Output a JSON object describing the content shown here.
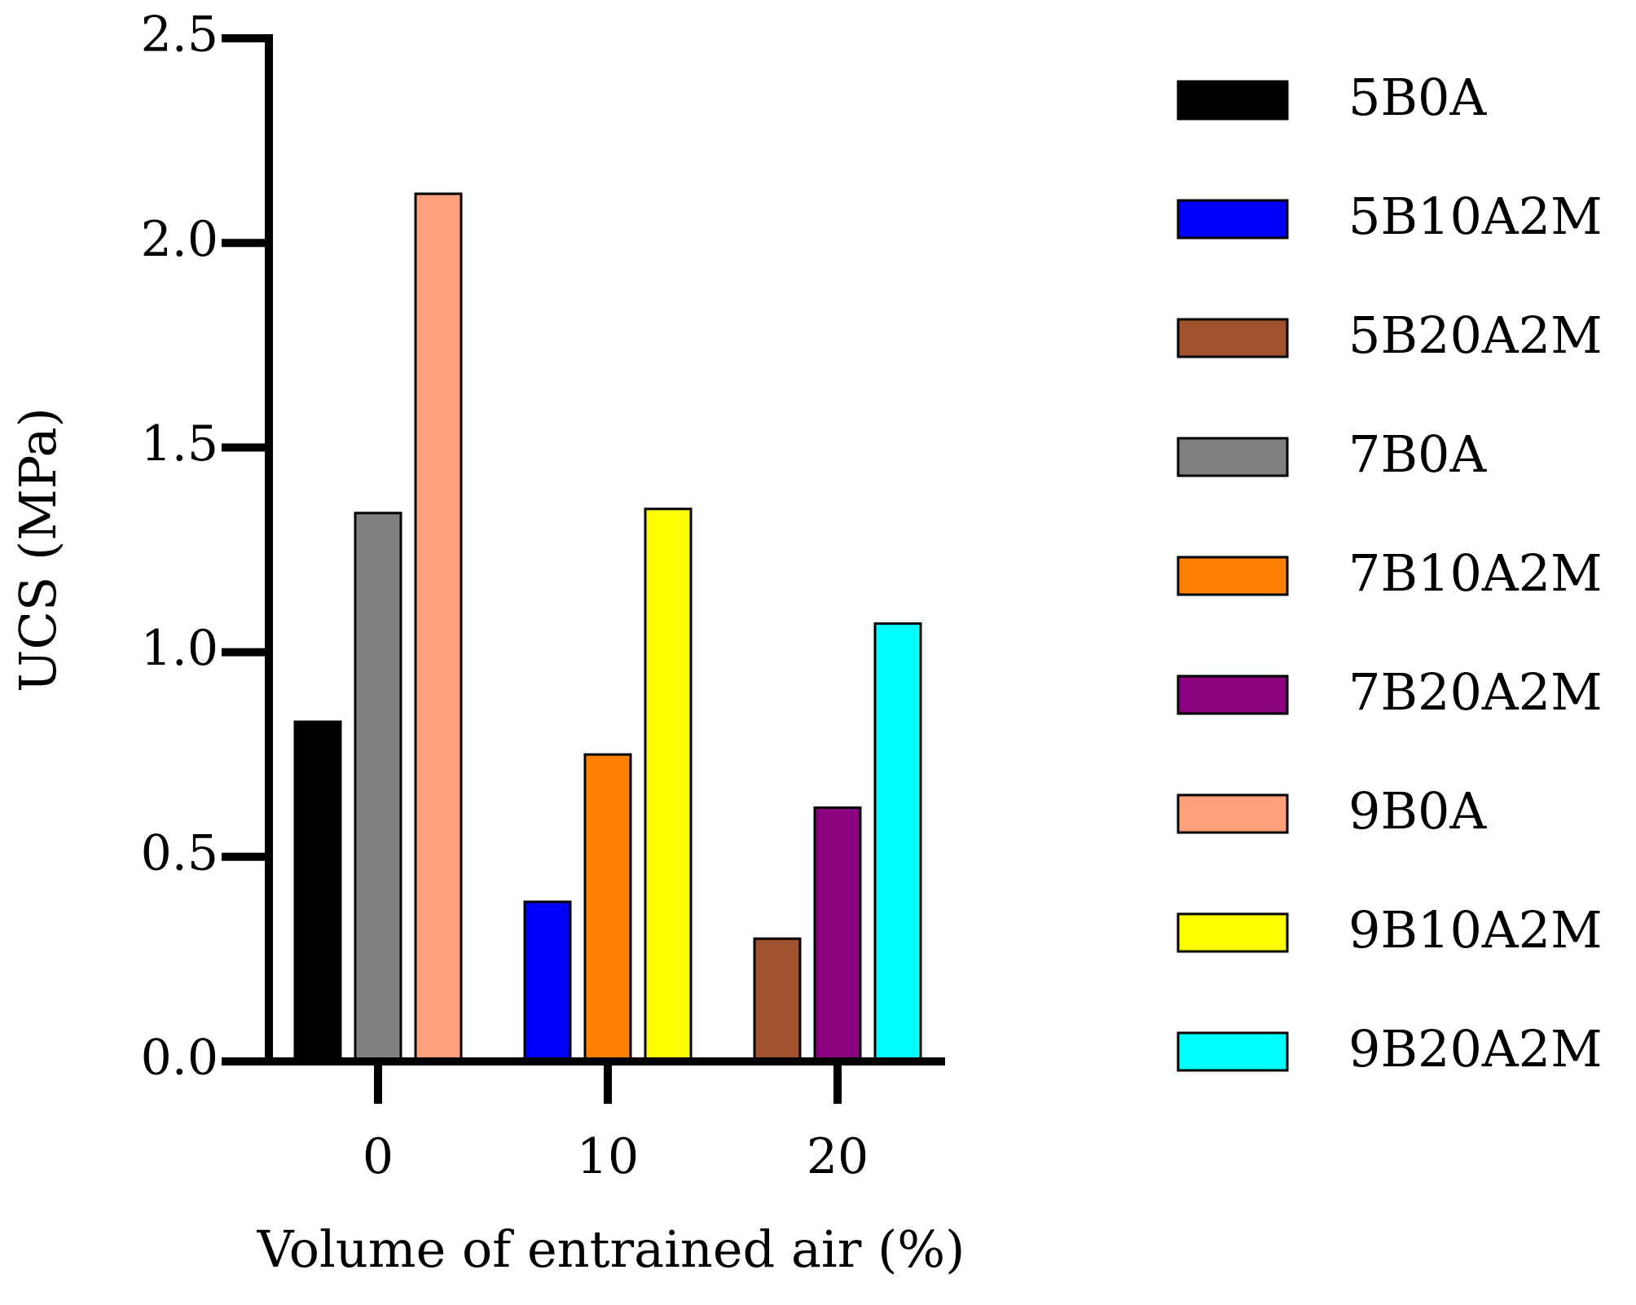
{
  "chart_data": {
    "type": "bar",
    "title": "",
    "xlabel": "Volume of entrained air (%)",
    "ylabel": "UCS (MPa)",
    "ylim": [
      0,
      2.5
    ],
    "yticks": [
      0,
      0.5,
      1,
      1.5,
      2,
      2.5
    ],
    "ytick_labels": [
      "0.0",
      "0.5",
      "1.0",
      "1.5",
      "2.0",
      "2.5"
    ],
    "grid": false,
    "legend_position": "right",
    "categories": [
      "0",
      "10",
      "20"
    ],
    "series": [
      {
        "name": "5B0A",
        "color": "#000000",
        "category": "0",
        "slot": 0,
        "value": 0.83
      },
      {
        "name": "5B10A2M",
        "color": "#0000FF",
        "category": "10",
        "slot": 0,
        "value": 0.39
      },
      {
        "name": "5B20A2M",
        "color": "#A0522D",
        "category": "20",
        "slot": 0,
        "value": 0.3
      },
      {
        "name": "7B0A",
        "color": "#808080",
        "category": "0",
        "slot": 1,
        "value": 1.34
      },
      {
        "name": "7B10A2M",
        "color": "#FF8000",
        "category": "10",
        "slot": 1,
        "value": 0.75
      },
      {
        "name": "7B20A2M",
        "color": "#8B007F",
        "category": "20",
        "slot": 1,
        "value": 0.62
      },
      {
        "name": "9B0A",
        "color": "#FFA07A",
        "category": "0",
        "slot": 2,
        "value": 2.12
      },
      {
        "name": "9B10A2M",
        "color": "#FFFF00",
        "category": "10",
        "slot": 2,
        "value": 1.35
      },
      {
        "name": "9B20A2M",
        "color": "#00FFFF",
        "category": "20",
        "slot": 2,
        "value": 1.07
      }
    ]
  }
}
